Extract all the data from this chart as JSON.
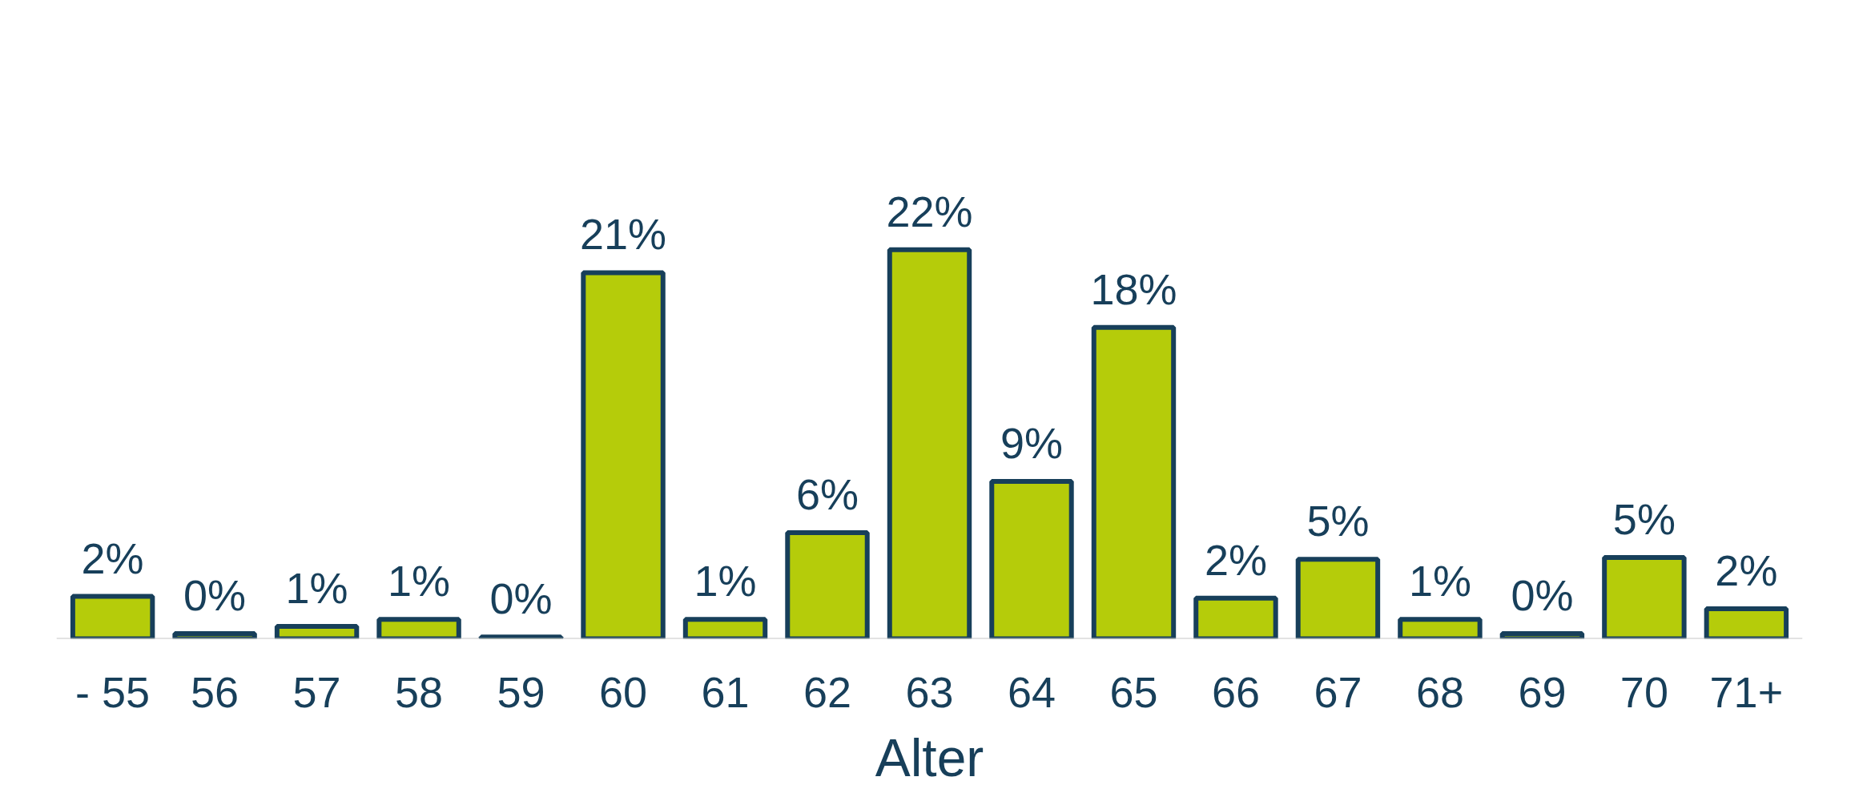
{
  "chart_data": {
    "type": "bar",
    "xlabel": "Alter",
    "categories": [
      "- 55",
      "56",
      "57",
      "58",
      "59",
      "60",
      "61",
      "62",
      "63",
      "64",
      "65",
      "66",
      "67",
      "68",
      "69",
      "70",
      "71+"
    ],
    "values": [
      2.4,
      0.3,
      0.7,
      1.1,
      0.1,
      20.7,
      1.1,
      6.0,
      22.0,
      8.9,
      17.6,
      2.3,
      4.5,
      1.1,
      0.3,
      4.6,
      1.7
    ],
    "value_labels": [
      "2%",
      "0%",
      "1%",
      "1%",
      "0%",
      "21%",
      "1%",
      "6%",
      "22%",
      "9%",
      "18%",
      "2%",
      "5%",
      "1%",
      "0%",
      "5%",
      "2%"
    ],
    "color": "#b5cc0a",
    "grid": false
  }
}
